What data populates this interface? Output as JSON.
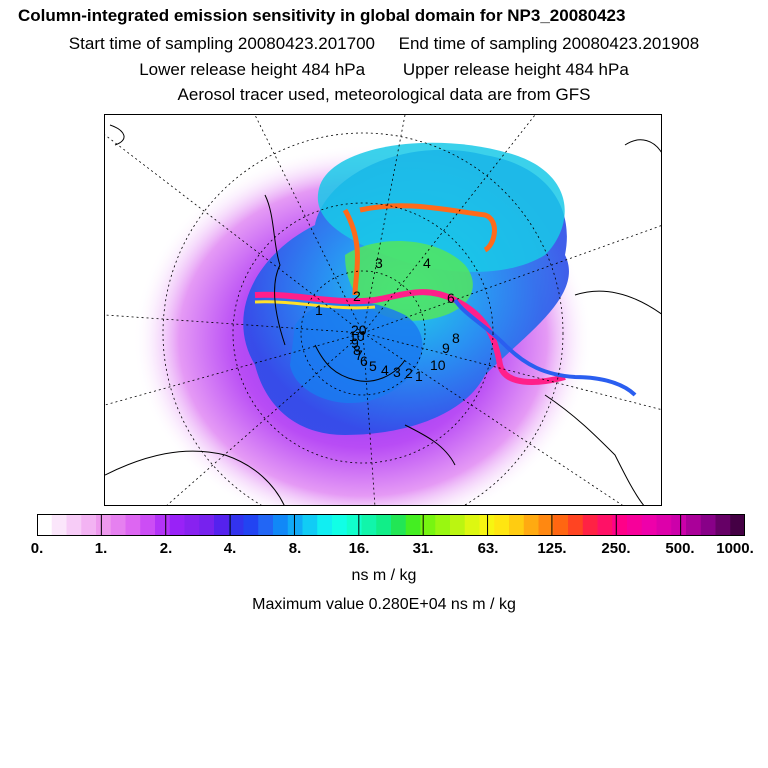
{
  "titles": {
    "main": "Column-integrated emission sensitivity in global domain for NP3_20080423",
    "start_label": "Start time of sampling 20080423.201700",
    "end_label": "End time of sampling 20080423.201908",
    "lower_label": "Lower release height  484 hPa",
    "upper_label": "Upper release height  484 hPa",
    "tracer_note": "Aerosol tracer used, meteorological data are from GFS"
  },
  "chart_data": {
    "type": "heatmap",
    "title": "Column-integrated emission sensitivity in global domain for NP3_20080423",
    "projection": "north polar stereographic",
    "colorbar": {
      "units": "ns m / kg",
      "scale": "log",
      "tick_labels": [
        "0.",
        "1.",
        "2.",
        "4.",
        "8.",
        "16.",
        "31.",
        "63.",
        "125.",
        "250.",
        "500.",
        "1000."
      ],
      "tick_values": [
        0,
        1,
        2,
        4,
        8,
        16,
        31,
        63,
        125,
        250,
        500,
        1000
      ],
      "colors": [
        "#ffffff",
        "#fbe6fb",
        "#f7ccf7",
        "#f3b3f3",
        "#ee99ee",
        "#e680f0",
        "#dd66f2",
        "#cc4df5",
        "#b333f7",
        "#9922f7",
        "#8822f0",
        "#7722ee",
        "#5522ee",
        "#3333ee",
        "#2244f2",
        "#2266f5",
        "#1188f7",
        "#11aaf7",
        "#11ccf5",
        "#11eef2",
        "#11ffe6",
        "#11ffcc",
        "#11f5aa",
        "#11ee88",
        "#22e655",
        "#44ee22",
        "#77f511",
        "#99f711",
        "#bbf511",
        "#ddf711",
        "#f7f511",
        "#ffe611",
        "#ffcc11",
        "#ffaa11",
        "#ff8811",
        "#ff6611",
        "#ff4422",
        "#ff2244",
        "#ff1166",
        "#ff0088",
        "#f7009a",
        "#ee00aa",
        "#dd00aa",
        "#cc00aa",
        "#aa0099",
        "#880088",
        "#660066",
        "#440044"
      ]
    },
    "trajectory_labels": [
      "1",
      "2",
      "3",
      "4",
      "6",
      "8",
      "9",
      "10",
      "1",
      "2",
      "3",
      "4",
      "5",
      "6",
      "7",
      "8",
      "9",
      "10",
      "20"
    ],
    "max_value_label": "Maximum value  0.280E+04 ns m / kg",
    "max_value": 2800
  }
}
